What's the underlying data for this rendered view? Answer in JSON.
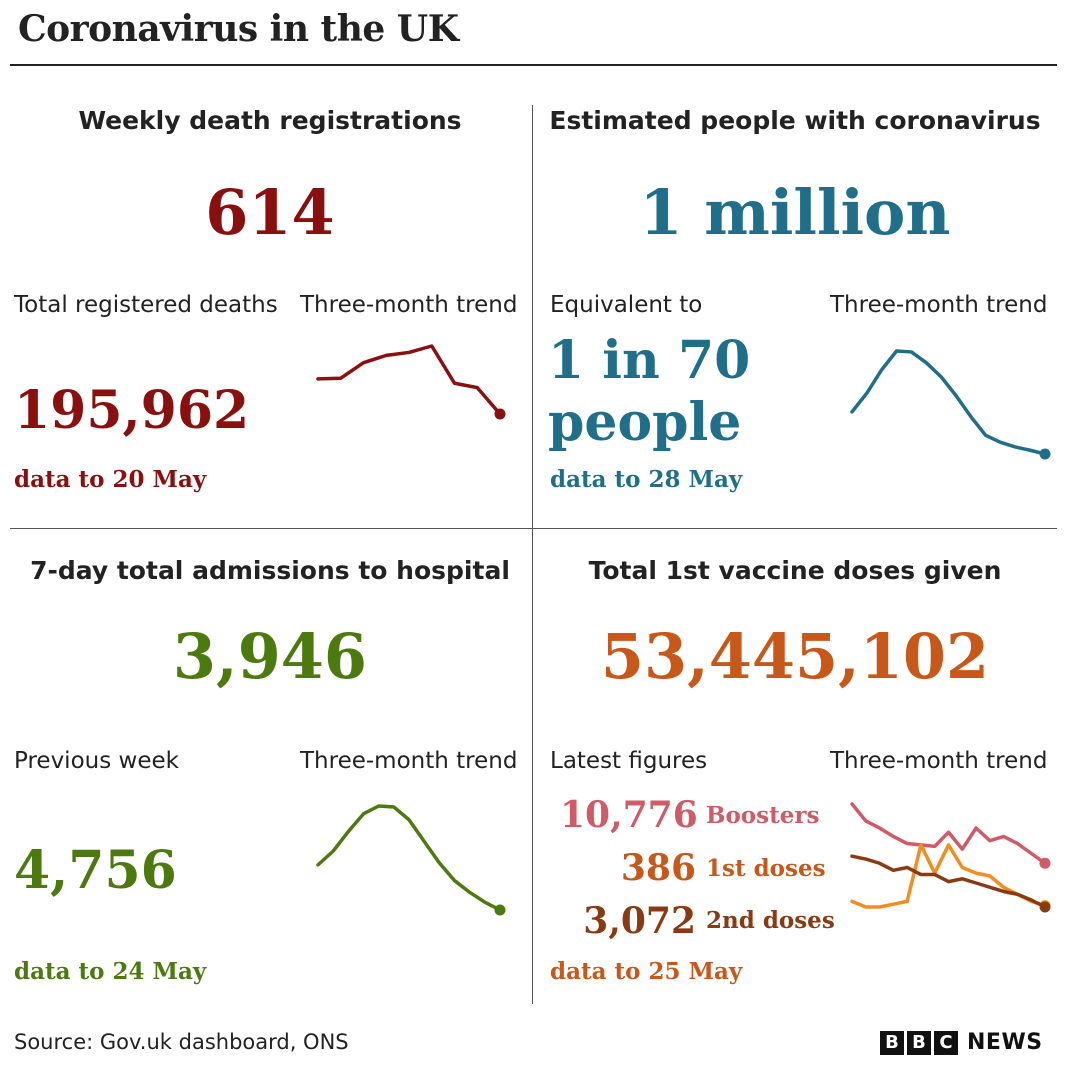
{
  "title": "Coronavirus in the UK",
  "colors": {
    "deaths": "#8a0f0f",
    "estimated": "#1f6f8b",
    "hospital": "#4c7a0f",
    "vaccine": "#c8571a",
    "boosters": "#d05a65",
    "first_doses": "#f58c1e",
    "second_doses": "#8a3a12"
  },
  "panels": {
    "deaths": {
      "heading": "Weekly death registrations",
      "value": "614",
      "left_label": "Total registered deaths",
      "trend_label": "Three-month trend",
      "total": "195,962",
      "date_note": "data to 20 May"
    },
    "estimated": {
      "heading": "Estimated people with coronavirus",
      "value": "1 million",
      "left_label": "Equivalent to",
      "trend_label": "Three-month trend",
      "line1": "1 in 70",
      "line2": "people",
      "date_note": "data to 28 May"
    },
    "hospital": {
      "heading": "7-day total admissions to hospital",
      "value": "3,946",
      "left_label": "Previous week",
      "trend_label": "Three-month trend",
      "previous": "4,756",
      "date_note": "data to 24 May"
    },
    "vaccine": {
      "heading": "Total 1st vaccine doses given",
      "value": "53,445,102",
      "left_label": "Latest figures",
      "trend_label": "Three-month trend",
      "boosters_value": "10,776",
      "boosters_label": "Boosters",
      "first_value": "386",
      "first_label": "1st doses",
      "second_value": "3,072",
      "second_label": "2nd doses",
      "date_note": "data to 25 May"
    }
  },
  "source": "Source: Gov.uk dashboard, ONS",
  "logo": {
    "letters": [
      "B",
      "B",
      "C"
    ],
    "word": "NEWS"
  },
  "chart_data": [
    {
      "type": "line",
      "series": [
        {
          "name": "",
          "values": [
            330,
            332,
            385,
            410,
            420,
            442,
            315,
            300,
            210
          ]
        }
      ]
    },
    {
      "type": "line",
      "series": [
        {
          "name": "",
          "values": [
            1.7,
            2.1,
            2.6,
            3.0,
            2.98,
            2.75,
            2.45,
            2.05,
            1.6,
            1.2,
            1.05,
            0.95,
            0.88,
            0.8
          ]
        }
      ]
    },
    {
      "type": "line",
      "series": [
        {
          "name": "",
          "values": [
            4.5,
            5.2,
            6.2,
            7.1,
            7.5,
            7.45,
            6.8,
            5.7,
            4.6,
            3.7,
            3.1,
            2.6,
            2.2
          ]
        }
      ]
    },
    {
      "type": "line",
      "series": [
        {
          "name": "Boosters",
          "values": [
            9.5,
            8.3,
            7.8,
            7.2,
            6.7,
            6.6,
            6.5,
            7.5,
            6.3,
            7.8,
            6.9,
            7.2,
            6.7,
            6.0,
            5.3
          ]
        },
        {
          "name": "1st doses",
          "values": [
            2.6,
            2.2,
            2.2,
            2.4,
            2.6,
            6.6,
            4.6,
            6.6,
            5.0,
            4.6,
            4.4,
            3.6,
            3.1,
            2.6,
            2.3
          ]
        },
        {
          "name": "2nd doses",
          "values": [
            5.8,
            5.6,
            5.3,
            4.8,
            5.0,
            4.5,
            4.5,
            4.0,
            4.2,
            3.9,
            3.6,
            3.3,
            3.1,
            2.7,
            2.2
          ]
        }
      ]
    }
  ]
}
